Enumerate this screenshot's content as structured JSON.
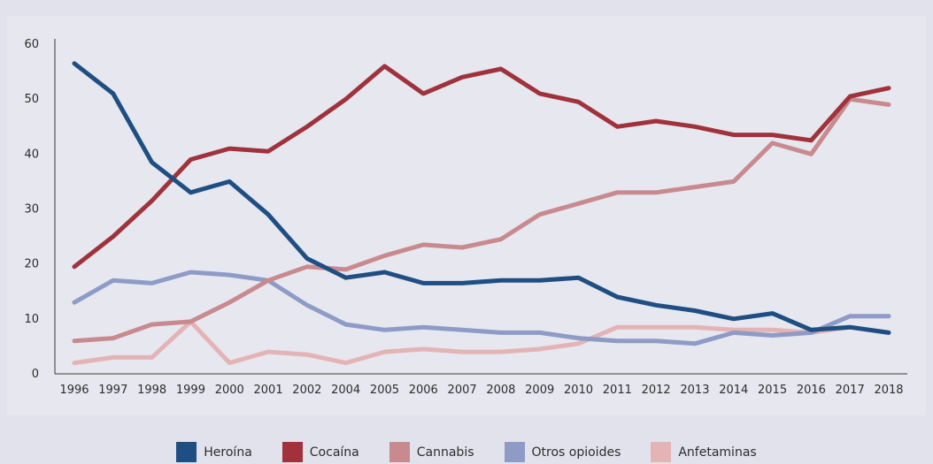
{
  "chart_data": {
    "type": "line",
    "categories": [
      "1996",
      "1997",
      "1998",
      "1999",
      "2000",
      "2001",
      "2002",
      "2004",
      "2005",
      "2006",
      "2007",
      "2008",
      "2009",
      "2010",
      "2011",
      "2012",
      "2013",
      "2014",
      "2015",
      "2016",
      "2017",
      "2018"
    ],
    "y_ticks": [
      "0",
      "10",
      "20",
      "30",
      "40",
      "50",
      "60"
    ],
    "ylim": [
      0,
      60
    ],
    "grid": false,
    "legend_position": "bottom",
    "series": [
      {
        "name": "Heroína",
        "color": "#1f4f82",
        "values": [
          56.5,
          51,
          38.5,
          33,
          35,
          29,
          21,
          17.5,
          18.5,
          16.5,
          16.5,
          17,
          17,
          17.5,
          14,
          12.5,
          11.5,
          10,
          11,
          8,
          8.5,
          7.5
        ]
      },
      {
        "name": "Cocaína",
        "color": "#a0323c",
        "values": [
          19.5,
          25,
          31.5,
          39,
          41,
          40.5,
          45,
          50,
          56,
          51,
          54,
          55.5,
          51,
          49.5,
          45,
          46,
          45,
          43.5,
          43.5,
          42.5,
          50.5,
          52
        ]
      },
      {
        "name": "Cannabis",
        "color": "#c88a8e",
        "values": [
          6,
          6.5,
          9,
          9.5,
          13,
          17,
          19.5,
          19,
          21.5,
          23.5,
          23,
          24.5,
          29,
          31,
          33,
          33,
          34,
          35,
          42,
          40,
          50,
          49
        ]
      },
      {
        "name": "Otros opioides",
        "color": "#8d9bc6",
        "values": [
          13,
          17,
          16.5,
          18.5,
          18,
          17,
          12.5,
          9,
          8,
          8.5,
          8,
          7.5,
          7.5,
          6.5,
          6,
          6,
          5.5,
          7.5,
          7,
          7.5,
          10.5,
          10.5
        ]
      },
      {
        "name": "Anfetaminas",
        "color": "#e4b3b5",
        "values": [
          2,
          3,
          3,
          9.5,
          2,
          4,
          3.5,
          2,
          4,
          4.5,
          4,
          4,
          4.5,
          5.5,
          8.5,
          8.5,
          8.5,
          8,
          8,
          7.5,
          8.5,
          7.5
        ]
      }
    ]
  }
}
